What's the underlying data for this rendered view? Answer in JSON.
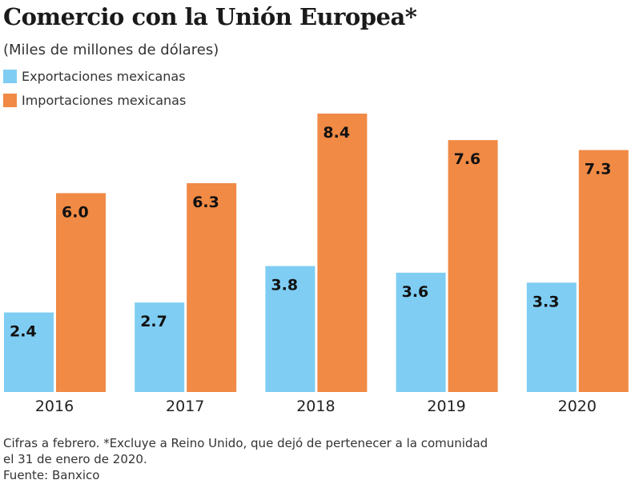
{
  "chart_data": {
    "type": "bar",
    "title": "Comercio con la Unión Europea*",
    "subtitle": "(Miles de millones de dólares)",
    "categories": [
      "2016",
      "2017",
      "2018",
      "2019",
      "2020"
    ],
    "series": [
      {
        "name": "Exportaciones mexicanas",
        "color": "#7fcdf3",
        "values": [
          2.4,
          2.7,
          3.8,
          3.6,
          3.3
        ]
      },
      {
        "name": "Importaciones mexicanas",
        "color": "#f08a45",
        "values": [
          6.0,
          6.3,
          8.4,
          7.6,
          7.3
        ]
      }
    ],
    "ylim": [
      0,
      8.4
    ],
    "grid": false,
    "legend": "top-left",
    "data_labels": true
  },
  "notes": {
    "line1": "Cifras a febrero. *Excluye a Reino Unido, que dejó de pertenecer a la comunidad",
    "line2": "el 31 de enero de 2020.",
    "source": "Fuente: Banxico"
  }
}
